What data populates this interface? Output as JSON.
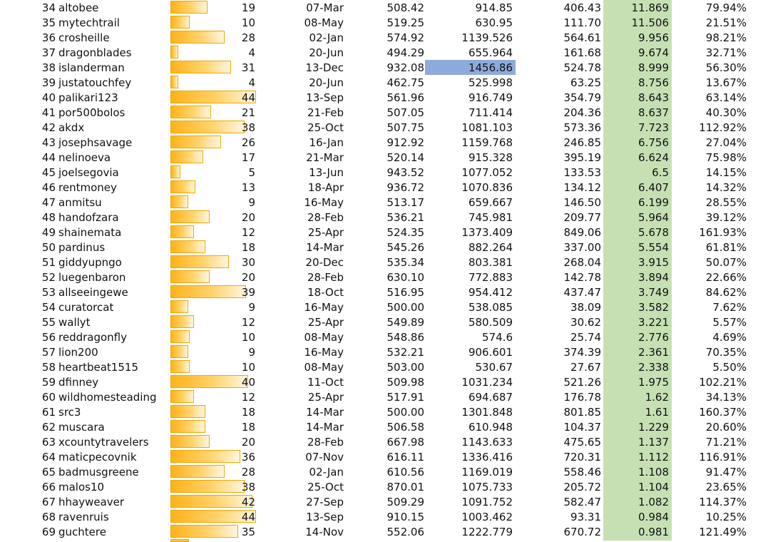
{
  "colors": {
    "bar_fill": "#ffb218",
    "bar_border": "#f0a800",
    "score_column_fill": "#c6e0b4",
    "selected_cell_fill": "#8eaadb"
  },
  "count_scale_max": 44,
  "selected_cell": {
    "row": 38,
    "column": "value2"
  },
  "rows": [
    {
      "rank": "34",
      "name": "altobee",
      "count": "19",
      "date": "07-Mar",
      "value1": "508.42",
      "value2": "914.85",
      "value3": "406.43",
      "score": "11.869",
      "pct": "79.94%"
    },
    {
      "rank": "35",
      "name": "mytechtrail",
      "count": "10",
      "date": "08-May",
      "value1": "519.25",
      "value2": "630.95",
      "value3": "111.70",
      "score": "11.506",
      "pct": "21.51%"
    },
    {
      "rank": "36",
      "name": "crosheille",
      "count": "28",
      "date": "02-Jan",
      "value1": "574.92",
      "value2": "1139.526",
      "value3": "564.61",
      "score": "9.956",
      "pct": "98.21%"
    },
    {
      "rank": "37",
      "name": "dragonblades",
      "count": "4",
      "date": "20-Jun",
      "value1": "494.29",
      "value2": "655.964",
      "value3": "161.68",
      "score": "9.674",
      "pct": "32.71%"
    },
    {
      "rank": "38",
      "name": "islanderman",
      "count": "31",
      "date": "13-Dec",
      "value1": "932.08",
      "value2": "1456.86",
      "value3": "524.78",
      "score": "8.999",
      "pct": "56.30%"
    },
    {
      "rank": "39",
      "name": "justatouchfey",
      "count": "4",
      "date": "20-Jun",
      "value1": "462.75",
      "value2": "525.998",
      "value3": "63.25",
      "score": "8.756",
      "pct": "13.67%"
    },
    {
      "rank": "40",
      "name": "palikari123",
      "count": "44",
      "date": "13-Sep",
      "value1": "561.96",
      "value2": "916.749",
      "value3": "354.79",
      "score": "8.643",
      "pct": "63.14%"
    },
    {
      "rank": "41",
      "name": "por500bolos",
      "count": "21",
      "date": "21-Feb",
      "value1": "507.05",
      "value2": "711.414",
      "value3": "204.36",
      "score": "8.637",
      "pct": "40.30%"
    },
    {
      "rank": "42",
      "name": "akdx",
      "count": "38",
      "date": "25-Oct",
      "value1": "507.75",
      "value2": "1081.103",
      "value3": "573.36",
      "score": "7.723",
      "pct": "112.92%"
    },
    {
      "rank": "43",
      "name": "josephsavage",
      "count": "26",
      "date": "16-Jan",
      "value1": "912.92",
      "value2": "1159.768",
      "value3": "246.85",
      "score": "6.756",
      "pct": "27.04%"
    },
    {
      "rank": "44",
      "name": "nelinoeva",
      "count": "17",
      "date": "21-Mar",
      "value1": "520.14",
      "value2": "915.328",
      "value3": "395.19",
      "score": "6.624",
      "pct": "75.98%"
    },
    {
      "rank": "45",
      "name": "joelsegovia",
      "count": "5",
      "date": "13-Jun",
      "value1": "943.52",
      "value2": "1077.052",
      "value3": "133.53",
      "score": "6.5",
      "pct": "14.15%"
    },
    {
      "rank": "46",
      "name": "rentmoney",
      "count": "13",
      "date": "18-Apr",
      "value1": "936.72",
      "value2": "1070.836",
      "value3": "134.12",
      "score": "6.407",
      "pct": "14.32%"
    },
    {
      "rank": "47",
      "name": "anmitsu",
      "count": "9",
      "date": "16-May",
      "value1": "513.17",
      "value2": "659.667",
      "value3": "146.50",
      "score": "6.199",
      "pct": "28.55%"
    },
    {
      "rank": "48",
      "name": "handofzara",
      "count": "20",
      "date": "28-Feb",
      "value1": "536.21",
      "value2": "745.981",
      "value3": "209.77",
      "score": "5.964",
      "pct": "39.12%"
    },
    {
      "rank": "49",
      "name": "shainemata",
      "count": "12",
      "date": "25-Apr",
      "value1": "524.35",
      "value2": "1373.409",
      "value3": "849.06",
      "score": "5.678",
      "pct": "161.93%"
    },
    {
      "rank": "50",
      "name": "pardinus",
      "count": "18",
      "date": "14-Mar",
      "value1": "545.26",
      "value2": "882.264",
      "value3": "337.00",
      "score": "5.554",
      "pct": "61.81%"
    },
    {
      "rank": "51",
      "name": "giddyupngo",
      "count": "30",
      "date": "20-Dec",
      "value1": "535.34",
      "value2": "803.381",
      "value3": "268.04",
      "score": "3.915",
      "pct": "50.07%"
    },
    {
      "rank": "52",
      "name": "luegenbaron",
      "count": "20",
      "date": "28-Feb",
      "value1": "630.10",
      "value2": "772.883",
      "value3": "142.78",
      "score": "3.894",
      "pct": "22.66%"
    },
    {
      "rank": "53",
      "name": "allseeingewe",
      "count": "39",
      "date": "18-Oct",
      "value1": "516.95",
      "value2": "954.412",
      "value3": "437.47",
      "score": "3.749",
      "pct": "84.62%"
    },
    {
      "rank": "54",
      "name": "curatorcat",
      "count": "9",
      "date": "16-May",
      "value1": "500.00",
      "value2": "538.085",
      "value3": "38.09",
      "score": "3.582",
      "pct": "7.62%"
    },
    {
      "rank": "55",
      "name": "wallyt",
      "count": "12",
      "date": "25-Apr",
      "value1": "549.89",
      "value2": "580.509",
      "value3": "30.62",
      "score": "3.221",
      "pct": "5.57%"
    },
    {
      "rank": "56",
      "name": "reddragonfly",
      "count": "10",
      "date": "08-May",
      "value1": "548.86",
      "value2": "574.6",
      "value3": "25.74",
      "score": "2.776",
      "pct": "4.69%"
    },
    {
      "rank": "57",
      "name": "lion200",
      "count": "9",
      "date": "16-May",
      "value1": "532.21",
      "value2": "906.601",
      "value3": "374.39",
      "score": "2.361",
      "pct": "70.35%"
    },
    {
      "rank": "58",
      "name": "heartbeat1515",
      "count": "10",
      "date": "08-May",
      "value1": "503.00",
      "value2": "530.67",
      "value3": "27.67",
      "score": "2.338",
      "pct": "5.50%"
    },
    {
      "rank": "59",
      "name": "dfinney",
      "count": "40",
      "date": "11-Oct",
      "value1": "509.98",
      "value2": "1031.234",
      "value3": "521.26",
      "score": "1.975",
      "pct": "102.21%"
    },
    {
      "rank": "60",
      "name": "wildhomesteading",
      "count": "12",
      "date": "25-Apr",
      "value1": "517.91",
      "value2": "694.687",
      "value3": "176.78",
      "score": "1.62",
      "pct": "34.13%"
    },
    {
      "rank": "61",
      "name": "src3",
      "count": "18",
      "date": "14-Mar",
      "value1": "500.00",
      "value2": "1301.848",
      "value3": "801.85",
      "score": "1.61",
      "pct": "160.37%"
    },
    {
      "rank": "62",
      "name": "muscara",
      "count": "18",
      "date": "14-Mar",
      "value1": "506.58",
      "value2": "610.948",
      "value3": "104.37",
      "score": "1.229",
      "pct": "20.60%"
    },
    {
      "rank": "63",
      "name": "xcountytravelers",
      "count": "20",
      "date": "28-Feb",
      "value1": "667.98",
      "value2": "1143.633",
      "value3": "475.65",
      "score": "1.137",
      "pct": "71.21%"
    },
    {
      "rank": "64",
      "name": "maticpecovnik",
      "count": "36",
      "date": "07-Nov",
      "value1": "616.11",
      "value2": "1336.416",
      "value3": "720.31",
      "score": "1.112",
      "pct": "116.91%"
    },
    {
      "rank": "65",
      "name": "badmusgreene",
      "count": "28",
      "date": "02-Jan",
      "value1": "610.56",
      "value2": "1169.019",
      "value3": "558.46",
      "score": "1.108",
      "pct": "91.47%"
    },
    {
      "rank": "66",
      "name": "malos10",
      "count": "38",
      "date": "25-Oct",
      "value1": "870.01",
      "value2": "1075.733",
      "value3": "205.72",
      "score": "1.104",
      "pct": "23.65%"
    },
    {
      "rank": "67",
      "name": "hhayweaver",
      "count": "42",
      "date": "27-Sep",
      "value1": "509.29",
      "value2": "1091.752",
      "value3": "582.47",
      "score": "1.082",
      "pct": "114.37%"
    },
    {
      "rank": "68",
      "name": "ravenruis",
      "count": "44",
      "date": "13-Sep",
      "value1": "910.15",
      "value2": "1003.462",
      "value3": "93.31",
      "score": "0.984",
      "pct": "10.25%"
    },
    {
      "rank": "69",
      "name": "guchtere",
      "count": "35",
      "date": "14-Nov",
      "value1": "552.06",
      "value2": "1222.779",
      "value3": "670.72",
      "score": "0.981",
      "pct": "121.49%"
    }
  ]
}
